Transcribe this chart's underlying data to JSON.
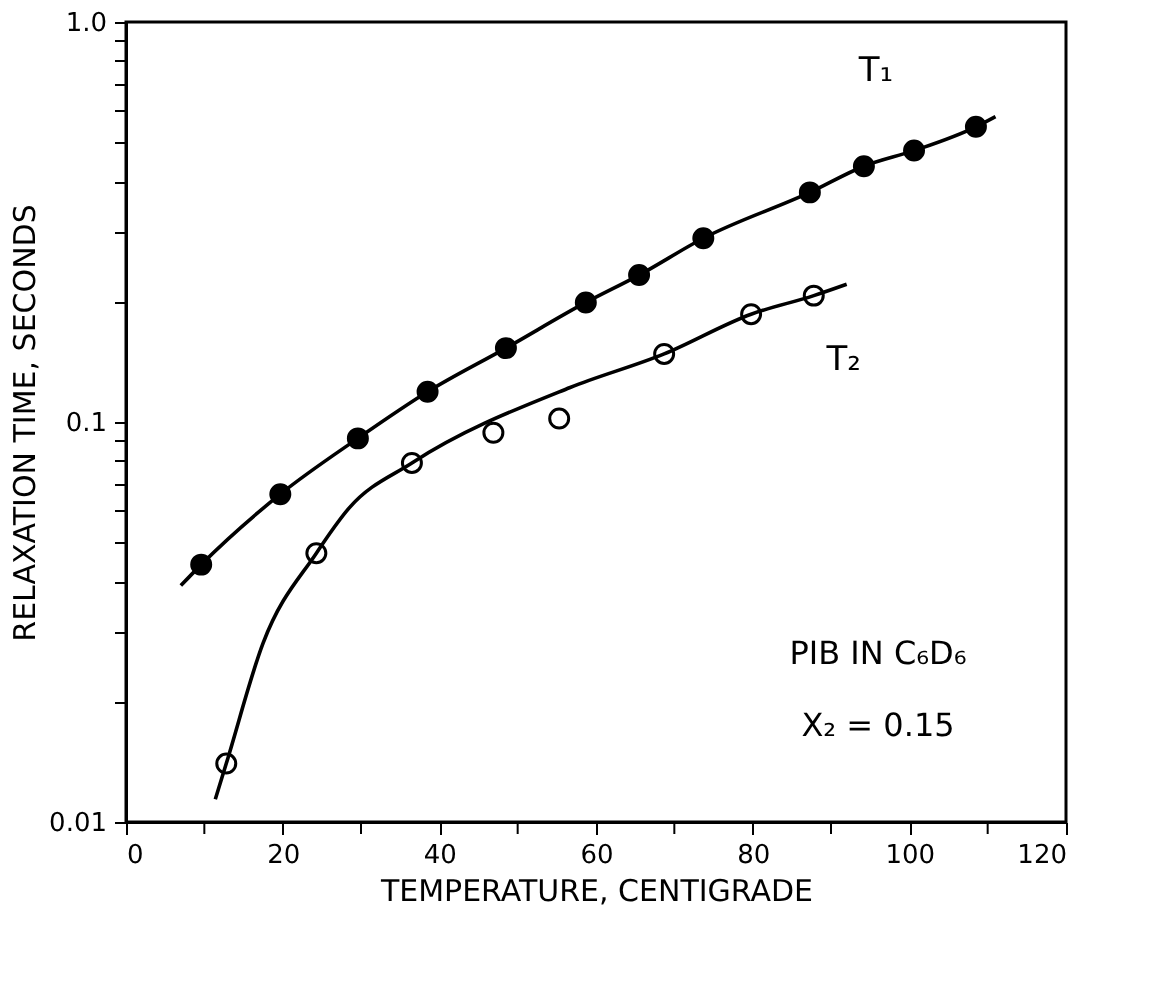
{
  "chart_data": {
    "type": "scatter",
    "xlabel": "TEMPERATURE, CENTIGRADE",
    "ylabel": "RELAXATION TIME, SECONDS",
    "log": "y",
    "grid": false,
    "legend": false,
    "xlim": [
      0,
      120
    ],
    "xticks": [
      0,
      20,
      40,
      60,
      80,
      100,
      120,
      {
        "value": 10,
        "label": null
      },
      {
        "value": 30,
        "label": null
      },
      {
        "value": 50,
        "label": null
      },
      {
        "value": 70,
        "label": null
      },
      {
        "value": 90,
        "label": null
      },
      {
        "value": 110,
        "label": null
      }
    ],
    "ylim": [
      0.01,
      1
    ],
    "yticks": [
      0.01,
      0.1,
      {
        "value": 1,
        "label": "1.0"
      },
      {
        "value": 0.02,
        "label": null
      },
      {
        "value": 0.03,
        "label": null
      },
      {
        "value": 0.04,
        "label": null
      },
      {
        "value": 0.05,
        "label": null
      },
      {
        "value": 0.06,
        "label": null
      },
      {
        "value": 0.07,
        "label": null
      },
      {
        "value": 0.08,
        "label": null
      },
      {
        "value": 0.09,
        "label": null
      },
      {
        "value": 0.2,
        "label": null
      },
      {
        "value": 0.3,
        "label": null
      },
      {
        "value": 0.4,
        "label": null
      },
      {
        "value": 0.5,
        "label": null
      },
      {
        "value": 0.6,
        "label": null
      },
      {
        "value": 0.7,
        "label": null
      },
      {
        "value": 0.8,
        "label": null
      },
      {
        "value": 0.9,
        "label": null
      }
    ],
    "annotations": [
      "PIB IN C₆D₆",
      "X₂ = 0.15"
    ],
    "series": [
      {
        "name": "T₁",
        "marker": "circle",
        "color": "#000000",
        "x": [
          9.6,
          19.7,
          29.6,
          38.5,
          48.5,
          58.7,
          65.5,
          73.7,
          87.3,
          94.2,
          100.6,
          108.5
        ],
        "values": [
          0.044,
          0.066,
          0.091,
          0.119,
          0.153,
          0.199,
          0.233,
          0.288,
          0.375,
          0.436,
          0.477,
          0.547
        ]
      },
      {
        "name": "T₂",
        "marker": "circle-open",
        "color": "#000000",
        "x": [
          12.8,
          24.3,
          36.5,
          46.9,
          55.3,
          68.7,
          79.8,
          87.8
        ],
        "values": [
          0.014,
          0.047,
          0.079,
          0.094,
          0.102,
          0.148,
          0.186,
          0.207
        ]
      },
      {
        "type": "line",
        "marker": "none",
        "color": "#000000",
        "x": [
          7,
          9.6,
          19.7,
          29.6,
          38.5,
          48.5,
          58.7,
          65.5,
          73.7,
          87.3,
          94.2,
          100.6,
          108.5,
          111
        ],
        "values": [
          0.039,
          0.044,
          0.066,
          0.091,
          0.119,
          0.153,
          0.199,
          0.233,
          0.288,
          0.375,
          0.436,
          0.477,
          0.547,
          0.58
        ]
      },
      {
        "type": "line",
        "marker": "none",
        "color": "#000000",
        "x": [
          11.4,
          12.8,
          17.5,
          24.3,
          28.5,
          36.5,
          56.7,
          68.7,
          79.8,
          87.8,
          92
        ],
        "values": [
          0.0114,
          0.014,
          0.028,
          0.047,
          0.061,
          0.079,
          0.122,
          0.148,
          0.186,
          0.207,
          0.221
        ]
      }
    ]
  }
}
